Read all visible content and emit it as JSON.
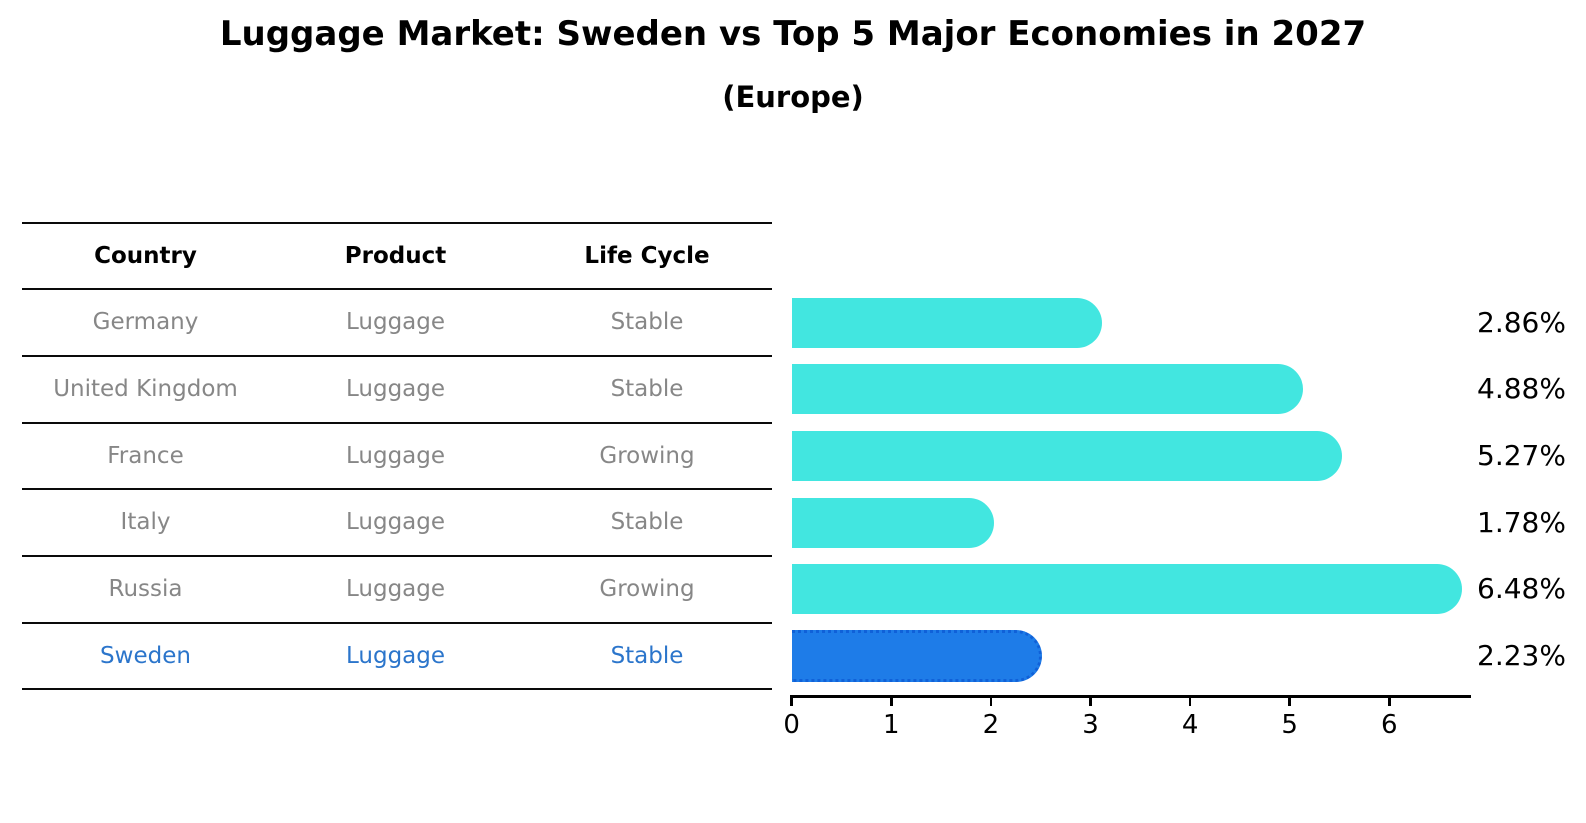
{
  "title": "Luggage Market: Sweden vs Top 5 Major Economies in 2027",
  "subtitle": "(Europe)",
  "table": {
    "headers": [
      "Country",
      "Product",
      "Life Cycle"
    ],
    "rows": [
      {
        "country": "Germany",
        "product": "Luggage",
        "life_cycle": "Stable",
        "highlighted": false
      },
      {
        "country": "United Kingdom",
        "product": "Luggage",
        "life_cycle": "Stable",
        "highlighted": false
      },
      {
        "country": "France",
        "product": "Luggage",
        "life_cycle": "Growing",
        "highlighted": false
      },
      {
        "country": "Italy",
        "product": "Luggage",
        "life_cycle": "Stable",
        "highlighted": false
      },
      {
        "country": "Russia",
        "product": "Luggage",
        "life_cycle": "Growing",
        "highlighted": false
      },
      {
        "country": "Sweden",
        "product": "Luggage",
        "life_cycle": "Stable",
        "highlighted": true
      }
    ]
  },
  "chart_data": {
    "type": "bar",
    "orientation": "horizontal",
    "title": "Luggage Market: Sweden vs Top 5 Major Economies in 2027",
    "subtitle": "(Europe)",
    "categories": [
      "Germany",
      "United Kingdom",
      "France",
      "Italy",
      "Russia",
      "Sweden"
    ],
    "values": [
      2.86,
      4.88,
      5.27,
      1.78,
      6.48,
      2.23
    ],
    "value_labels": [
      "2.86%",
      "4.88%",
      "5.27%",
      "1.78%",
      "6.48%",
      "2.23%"
    ],
    "value_suffix": "%",
    "x_ticks": [
      0,
      1,
      2,
      3,
      4,
      5,
      6
    ],
    "xlim": [
      0,
      6.8
    ],
    "xlabel": "",
    "ylabel": "",
    "grid": false,
    "legend": false,
    "highlight_index": 5,
    "bar_color": "#42e6e0",
    "highlight_bar_color": "#1e7ce8",
    "highlight_border_color": "#1061d8",
    "highlight_text_color": "#2b75cb",
    "row_text_color": "#878787",
    "label_color": "#000000"
  }
}
